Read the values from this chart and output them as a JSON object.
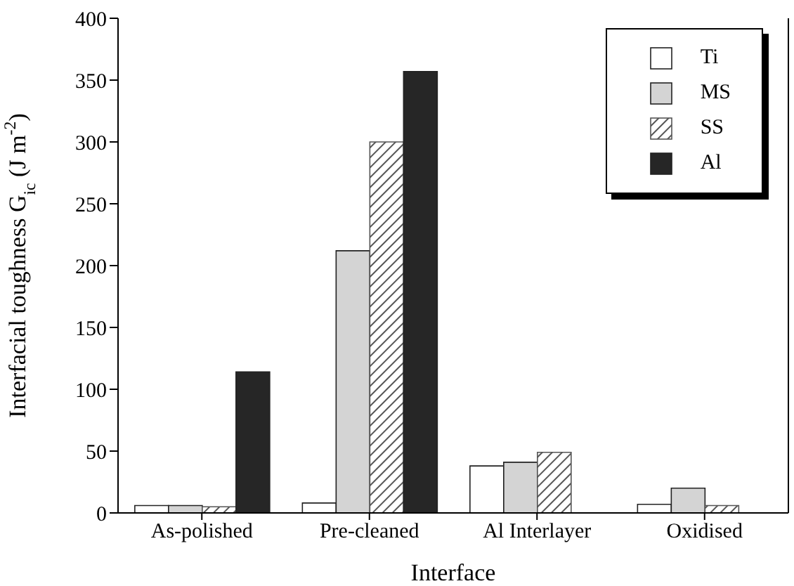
{
  "chart_data": {
    "type": "bar",
    "xlabel": "Interface",
    "ylabel": "Interfacial toughness G$_{ic}$ (J m$^{-2}$)",
    "categories": [
      "As-polished",
      "Pre-cleaned",
      "Al Interlayer",
      "Oxidised"
    ],
    "series": [
      {
        "name": "Ti",
        "color": "#ffffff",
        "values": [
          6,
          8,
          38,
          7
        ]
      },
      {
        "name": "MS",
        "color": "#d4d4d4",
        "values": [
          6,
          212,
          41,
          20
        ]
      },
      {
        "name": "SS",
        "color": "#555555",
        "values": [
          5,
          300,
          49,
          6
        ]
      },
      {
        "name": "Al",
        "color": "#262626",
        "values": [
          114,
          357,
          null,
          null
        ]
      }
    ],
    "ylim": [
      0,
      400
    ],
    "yticks": [
      0,
      50,
      100,
      150,
      200,
      250,
      300,
      350,
      400
    ],
    "grid": false,
    "legend": "top right"
  }
}
